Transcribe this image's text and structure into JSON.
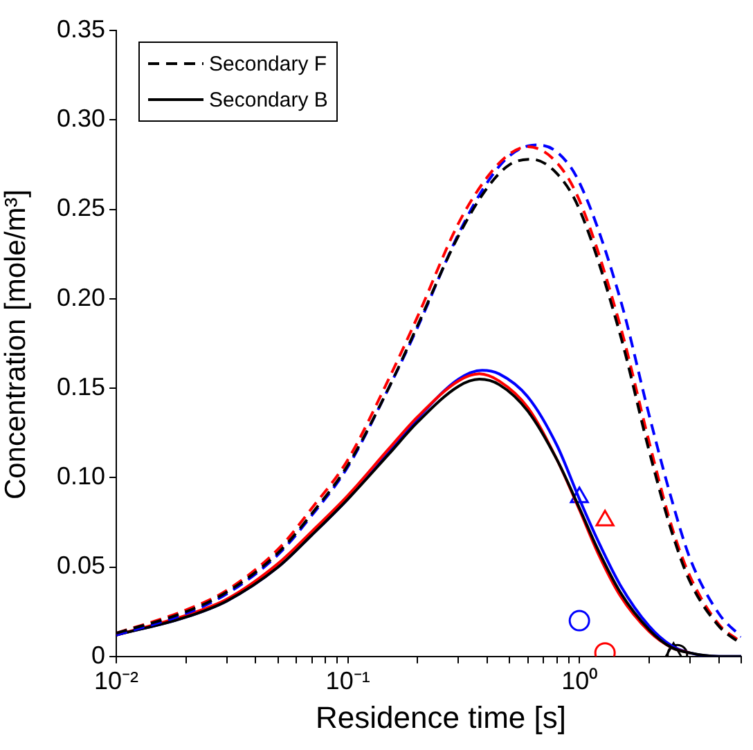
{
  "chart_data": {
    "type": "line",
    "xlabel": "Residence time [s]",
    "ylabel": "Concentration [mole/m³]",
    "log": "x",
    "grid": false,
    "legend": "top left",
    "marker": "none",
    "xlim": [
      0.01,
      5
    ],
    "ylim": [
      0,
      0.35
    ],
    "xticks": [
      {
        "value": 0.01,
        "label": "10⁻²"
      },
      {
        "value": 0.02,
        "label": null
      },
      {
        "value": 0.03,
        "label": null
      },
      {
        "value": 0.04,
        "label": null
      },
      {
        "value": 0.05,
        "label": null
      },
      {
        "value": 0.06,
        "label": null
      },
      {
        "value": 0.07,
        "label": null
      },
      {
        "value": 0.08,
        "label": null
      },
      {
        "value": 0.09,
        "label": null
      },
      {
        "value": 0.1,
        "label": "10⁻¹"
      },
      {
        "value": 0.2,
        "label": null
      },
      {
        "value": 0.3,
        "label": null
      },
      {
        "value": 0.4,
        "label": null
      },
      {
        "value": 0.5,
        "label": null
      },
      {
        "value": 0.6,
        "label": null
      },
      {
        "value": 0.7,
        "label": null
      },
      {
        "value": 0.8,
        "label": null
      },
      {
        "value": 0.9,
        "label": null
      },
      {
        "value": 1,
        "label": "10⁰"
      },
      {
        "value": 2,
        "label": null
      },
      {
        "value": 3,
        "label": null
      },
      {
        "value": 4,
        "label": null
      },
      {
        "value": 5,
        "label": null
      }
    ],
    "yticks": [
      0,
      0.05,
      {
        "value": 0.1,
        "label": "0.10"
      },
      0.15,
      {
        "value": 0.2,
        "label": "0.20"
      },
      0.25,
      {
        "value": 0.3,
        "label": "0.30"
      },
      0.35
    ],
    "series": [
      {
        "name": "Secondary F",
        "color": "#000000",
        "line_style": "dashed",
        "x": [
          0.01,
          0.02,
          0.03,
          0.05,
          0.07,
          0.1,
          0.15,
          0.2,
          0.3,
          0.4,
          0.5,
          0.62,
          0.8,
          1,
          1.5,
          2,
          2.5,
          3,
          4,
          5
        ],
        "values": [
          0.013,
          0.025,
          0.036,
          0.058,
          0.08,
          0.107,
          0.15,
          0.185,
          0.235,
          0.262,
          0.275,
          0.278,
          0.27,
          0.25,
          0.18,
          0.115,
          0.07,
          0.042,
          0.017,
          0.007
        ]
      },
      {
        "color": "#ff0000",
        "line_style": "dashed",
        "x": [
          0.01,
          0.02,
          0.03,
          0.05,
          0.07,
          0.1,
          0.15,
          0.2,
          0.3,
          0.4,
          0.5,
          0.6,
          0.8,
          1,
          1.5,
          2,
          2.5,
          3,
          4,
          5
        ],
        "values": [
          0.013,
          0.026,
          0.037,
          0.06,
          0.083,
          0.11,
          0.155,
          0.19,
          0.242,
          0.268,
          0.281,
          0.285,
          0.276,
          0.255,
          0.185,
          0.12,
          0.073,
          0.045,
          0.018,
          0.008
        ]
      },
      {
        "color": "#0000ff",
        "line_style": "dashed",
        "x": [
          0.01,
          0.02,
          0.03,
          0.05,
          0.07,
          0.1,
          0.15,
          0.2,
          0.3,
          0.4,
          0.5,
          0.65,
          0.8,
          1,
          1.5,
          2,
          2.5,
          3,
          4,
          5
        ],
        "values": [
          0.012,
          0.024,
          0.035,
          0.057,
          0.079,
          0.106,
          0.15,
          0.184,
          0.236,
          0.265,
          0.28,
          0.286,
          0.282,
          0.265,
          0.2,
          0.135,
          0.088,
          0.055,
          0.024,
          0.011
        ]
      },
      {
        "name": "Secondary B",
        "color": "#000000",
        "line_style": "solid",
        "x": [
          0.01,
          0.02,
          0.03,
          0.05,
          0.07,
          0.1,
          0.15,
          0.2,
          0.3,
          0.37,
          0.45,
          0.6,
          0.8,
          1,
          1.2,
          1.5,
          2,
          2.5,
          3,
          4,
          5
        ],
        "values": [
          0.012,
          0.022,
          0.031,
          0.05,
          0.068,
          0.088,
          0.113,
          0.131,
          0.151,
          0.155,
          0.152,
          0.137,
          0.11,
          0.083,
          0.06,
          0.036,
          0.015,
          0.005,
          0.002,
          0,
          0
        ]
      },
      {
        "color": "#ff0000",
        "line_style": "solid",
        "x": [
          0.01,
          0.02,
          0.03,
          0.05,
          0.07,
          0.1,
          0.15,
          0.2,
          0.3,
          0.37,
          0.45,
          0.6,
          0.8,
          1,
          1.2,
          1.5,
          2,
          2.5,
          3
        ],
        "values": [
          0.012,
          0.023,
          0.032,
          0.052,
          0.07,
          0.09,
          0.116,
          0.134,
          0.154,
          0.158,
          0.154,
          0.139,
          0.11,
          0.082,
          0.058,
          0.034,
          0.014,
          0.005,
          0.002
        ]
      },
      {
        "color": "#0000ff",
        "line_style": "solid",
        "x": [
          0.01,
          0.02,
          0.03,
          0.05,
          0.07,
          0.1,
          0.15,
          0.2,
          0.3,
          0.38,
          0.45,
          0.6,
          0.8,
          1,
          1.2,
          1.5,
          2,
          2.5,
          3,
          4,
          5
        ],
        "values": [
          0.012,
          0.022,
          0.031,
          0.05,
          0.068,
          0.088,
          0.114,
          0.133,
          0.155,
          0.16,
          0.158,
          0.145,
          0.118,
          0.088,
          0.065,
          0.04,
          0.017,
          0.006,
          0.002,
          0,
          0
        ]
      },
      {
        "type": "scatter",
        "marker": "triangle",
        "color": "#0000ff",
        "x": [
          1
        ],
        "values": [
          0.089
        ]
      },
      {
        "type": "scatter",
        "marker": "triangle",
        "color": "#ff0000",
        "x": [
          1.29
        ],
        "values": [
          0.076
        ]
      },
      {
        "type": "scatter",
        "marker": "triangle",
        "color": "#000000",
        "x": [
          2.55
        ],
        "values": [
          0.002
        ]
      },
      {
        "type": "scatter",
        "marker": "circle",
        "color": "#0000ff",
        "x": [
          1
        ],
        "values": [
          0.02
        ]
      },
      {
        "type": "scatter",
        "marker": "circle",
        "color": "#ff0000",
        "x": [
          1.29
        ],
        "values": [
          0.002
        ]
      },
      {
        "type": "scatter",
        "marker": "circle",
        "color": "#000000",
        "x": [
          2.65
        ],
        "values": [
          0.001
        ]
      }
    ]
  }
}
